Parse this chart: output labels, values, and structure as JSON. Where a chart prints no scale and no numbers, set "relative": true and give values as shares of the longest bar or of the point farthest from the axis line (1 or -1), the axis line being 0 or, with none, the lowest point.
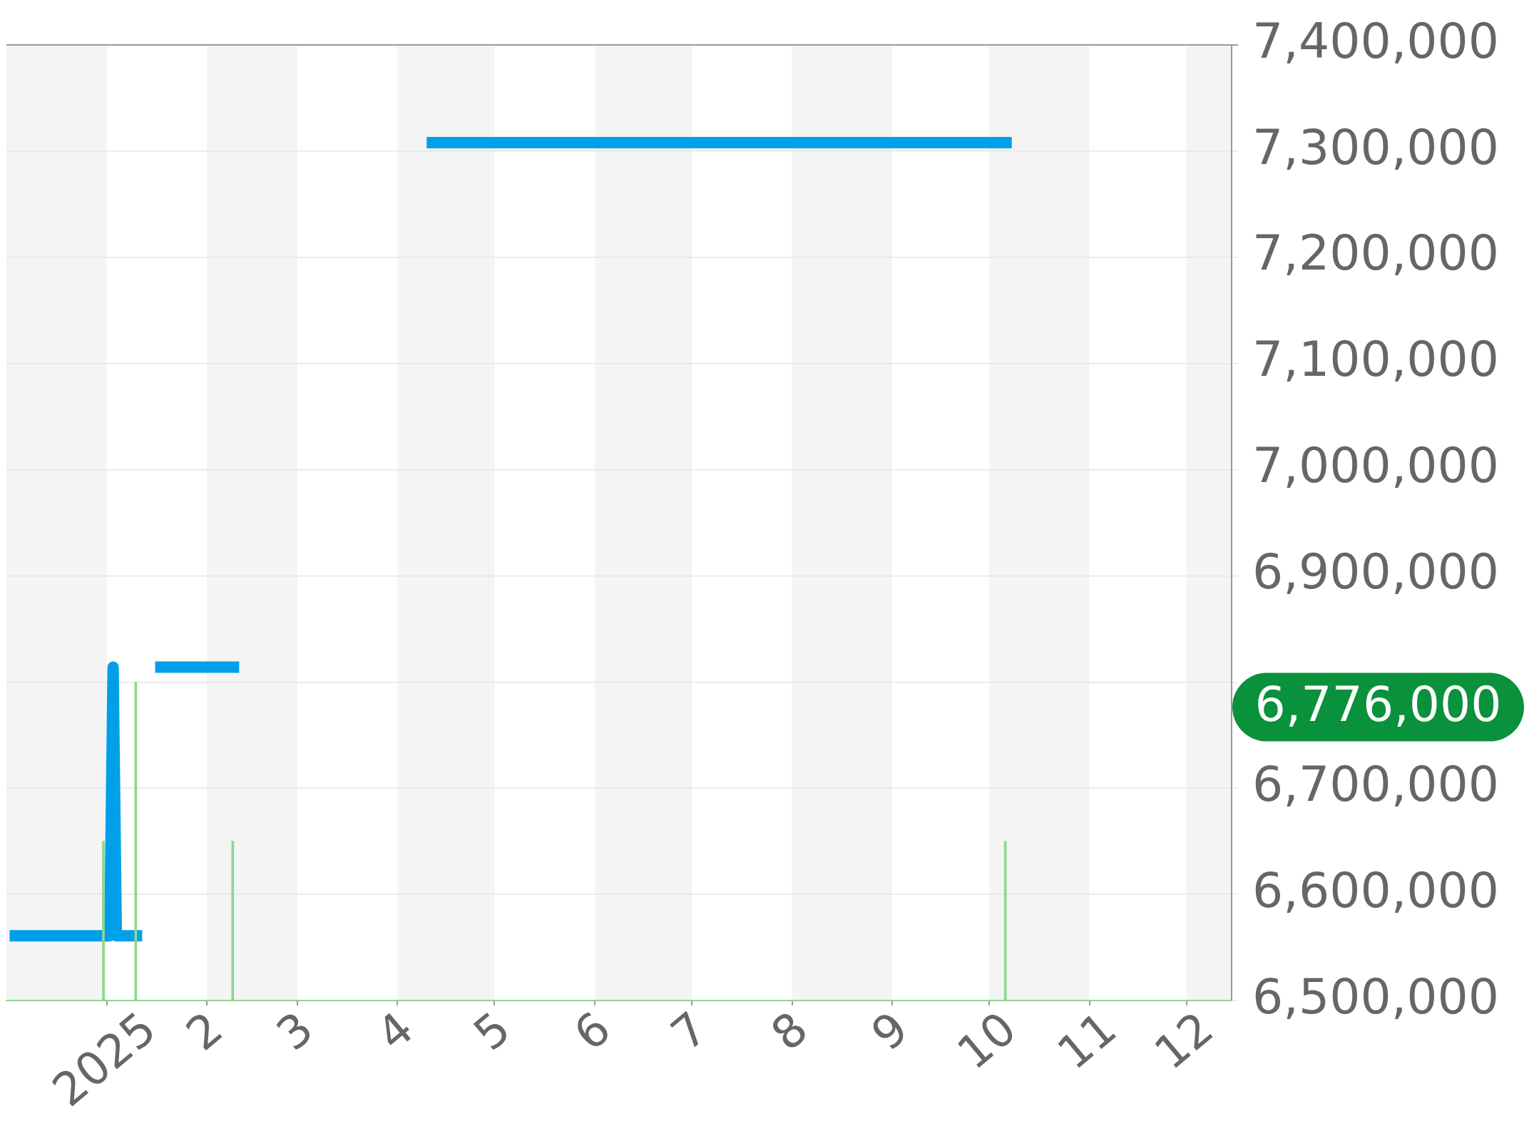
{
  "chart_data": [
    {
      "type": "line",
      "xlim": [
        "2024-12-01",
        "2025-12-15"
      ],
      "xticks": [
        {
          "value": "2025-01-01",
          "label": "2025"
        },
        {
          "value": "2025-02-01",
          "label": "2"
        },
        {
          "value": "2025-03-01",
          "label": "3"
        },
        {
          "value": "2025-04-01",
          "label": "4"
        },
        {
          "value": "2025-05-01",
          "label": "5"
        },
        {
          "value": "2025-06-01",
          "label": "6"
        },
        {
          "value": "2025-07-01",
          "label": "7"
        },
        {
          "value": "2025-08-01",
          "label": "8"
        },
        {
          "value": "2025-09-01",
          "label": "9"
        },
        {
          "value": "2025-10-01",
          "label": "10"
        },
        {
          "value": "2025-11-01",
          "label": "11"
        },
        {
          "value": "2025-12-01",
          "label": "12"
        }
      ],
      "ylim": [
        6500000,
        7400000
      ],
      "yticks": [
        {
          "value": 6500000,
          "label": "6,500,000"
        },
        {
          "value": 6600000,
          "label": "6,600,000"
        },
        {
          "value": 6700000,
          "label": "6,700,000"
        },
        {
          "value": 6800000,
          "label": null
        },
        {
          "value": 6900000,
          "label": "6,900,000"
        },
        {
          "value": 7000000,
          "label": "7,000,000"
        },
        {
          "value": 7100000,
          "label": "7,100,000"
        },
        {
          "value": 7200000,
          "label": "7,200,000"
        },
        {
          "value": 7300000,
          "label": "7,300,000"
        },
        {
          "value": 7400000,
          "label": "7,400,000"
        }
      ],
      "grid": "y",
      "marker": "none",
      "series": [
        {
          "color": "#00a0e9",
          "x": [
            "2024-12-02",
            "2025-01-02",
            "2025-01-03",
            "2025-01-04",
            "2025-01-12",
            "2025-01-14",
            "2025-01-16",
            "2025-02-11",
            "2025-03-10",
            "2025-04-10",
            "2025-10-08"
          ],
          "values": [
            6561000,
            6561000,
            6814000,
            6561000,
            6561000,
            null,
            6814000,
            6814000,
            null,
            7308000,
            7308000
          ]
        }
      ],
      "bands": [
        {
          "axis": "x",
          "from": "2024-12-01",
          "to": "2025-01-01",
          "color": "#f4f4f4"
        },
        {
          "axis": "x",
          "from": "2025-02-01",
          "to": "2025-03-01",
          "color": "#f4f4f4"
        },
        {
          "axis": "x",
          "from": "2025-04-01",
          "to": "2025-05-01",
          "color": "#f4f4f4"
        },
        {
          "axis": "x",
          "from": "2025-06-01",
          "to": "2025-07-01",
          "color": "#f4f4f4"
        },
        {
          "axis": "x",
          "from": "2025-08-01",
          "to": "2025-09-01",
          "color": "#f4f4f4"
        },
        {
          "axis": "x",
          "from": "2025-10-01",
          "to": "2025-11-01",
          "color": "#f4f4f4"
        },
        {
          "axis": "x",
          "from": "2025-12-01",
          "to": "2025-12-15",
          "color": "#f4f4f4"
        }
      ],
      "annotations": [
        "6,776,000"
      ]
    },
    {
      "type": "bar",
      "relative": true,
      "xlim": [
        "2024-12-01",
        "2025-12-15"
      ],
      "x": [
        "2024-12-31",
        "2025-01-10",
        "2025-02-09",
        "2025-10-06"
      ],
      "values": [
        0.5,
        1,
        0.5,
        0.5
      ],
      "color": "#8fd68f"
    }
  ]
}
